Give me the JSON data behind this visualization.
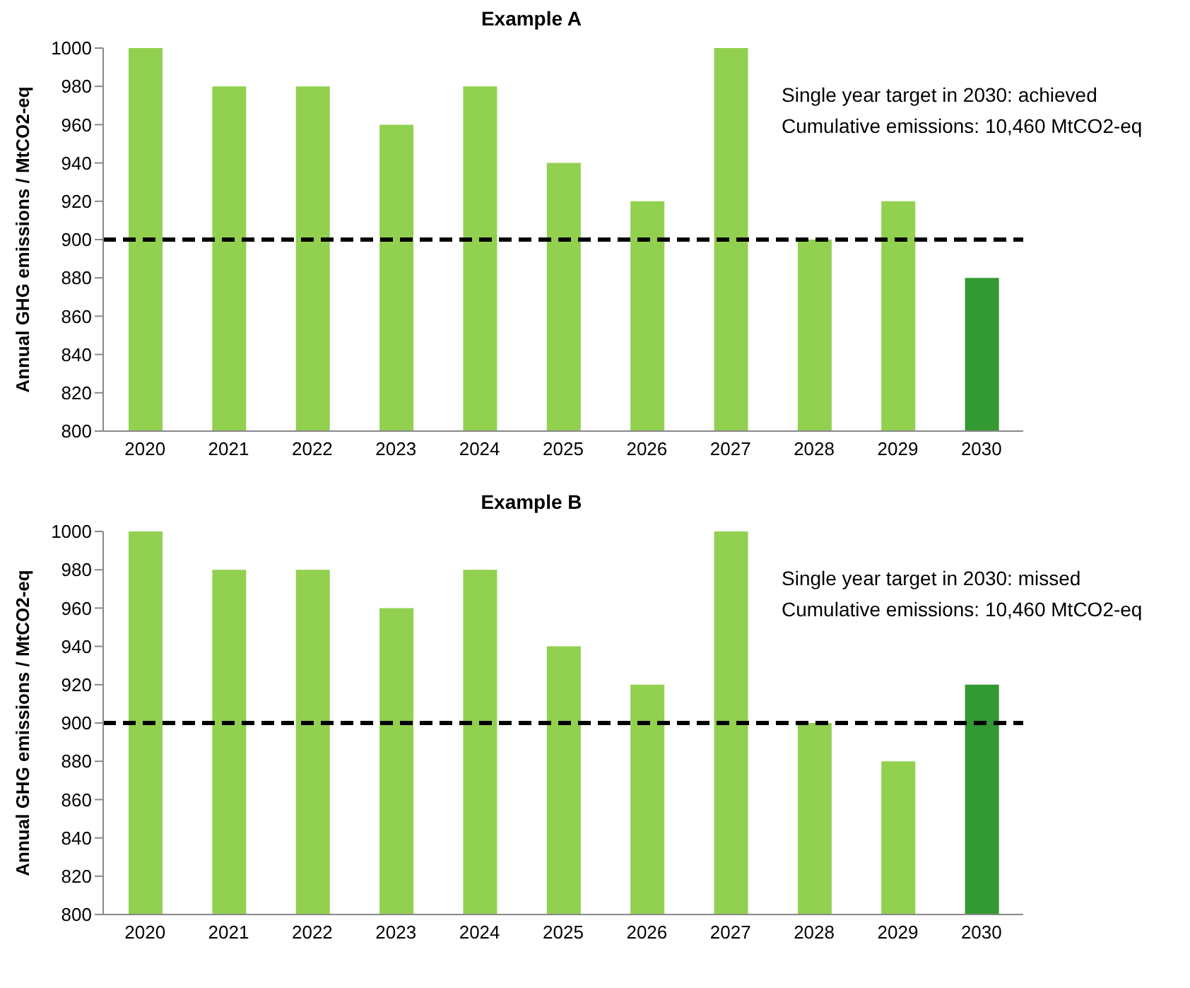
{
  "chart_data": [
    {
      "type": "bar",
      "title": "Example A",
      "ylabel": "Annual GHG emissions / MtCO2-eq",
      "categories": [
        "2020",
        "2021",
        "2022",
        "2023",
        "2024",
        "2025",
        "2026",
        "2027",
        "2028",
        "2029",
        "2030"
      ],
      "values": [
        1000,
        980,
        980,
        960,
        980,
        940,
        920,
        1000,
        900,
        920,
        880
      ],
      "colors": [
        "#92d050",
        "#92d050",
        "#92d050",
        "#92d050",
        "#92d050",
        "#92d050",
        "#92d050",
        "#92d050",
        "#92d050",
        "#92d050",
        "#339933"
      ],
      "ylim": [
        800,
        1000
      ],
      "yticks": [
        800,
        820,
        840,
        860,
        880,
        900,
        920,
        940,
        960,
        980,
        1000
      ],
      "grid": false,
      "legend": false,
      "ref_lines": [
        {
          "axis": "y",
          "value": 900,
          "color": "#000000",
          "line_style": "dashed"
        }
      ],
      "annotations": [
        "Single year target in 2030: achieved",
        "Cumulative emissions: 10,460 MtCO2-eq"
      ]
    },
    {
      "type": "bar",
      "title": "Example B",
      "ylabel": "Annual GHG emissions / MtCO2-eq",
      "categories": [
        "2020",
        "2021",
        "2022",
        "2023",
        "2024",
        "2025",
        "2026",
        "2027",
        "2028",
        "2029",
        "2030"
      ],
      "values": [
        1000,
        980,
        980,
        960,
        980,
        940,
        920,
        1000,
        900,
        880,
        920
      ],
      "colors": [
        "#92d050",
        "#92d050",
        "#92d050",
        "#92d050",
        "#92d050",
        "#92d050",
        "#92d050",
        "#92d050",
        "#92d050",
        "#92d050",
        "#339933"
      ],
      "ylim": [
        800,
        1000
      ],
      "yticks": [
        800,
        820,
        840,
        860,
        880,
        900,
        920,
        940,
        960,
        980,
        1000
      ],
      "grid": false,
      "legend": false,
      "ref_lines": [
        {
          "axis": "y",
          "value": 900,
          "color": "#000000",
          "line_style": "dashed"
        }
      ],
      "annotations": [
        "Single year target in 2030: missed",
        "Cumulative emissions: 10,460 MtCO2-eq"
      ]
    }
  ]
}
